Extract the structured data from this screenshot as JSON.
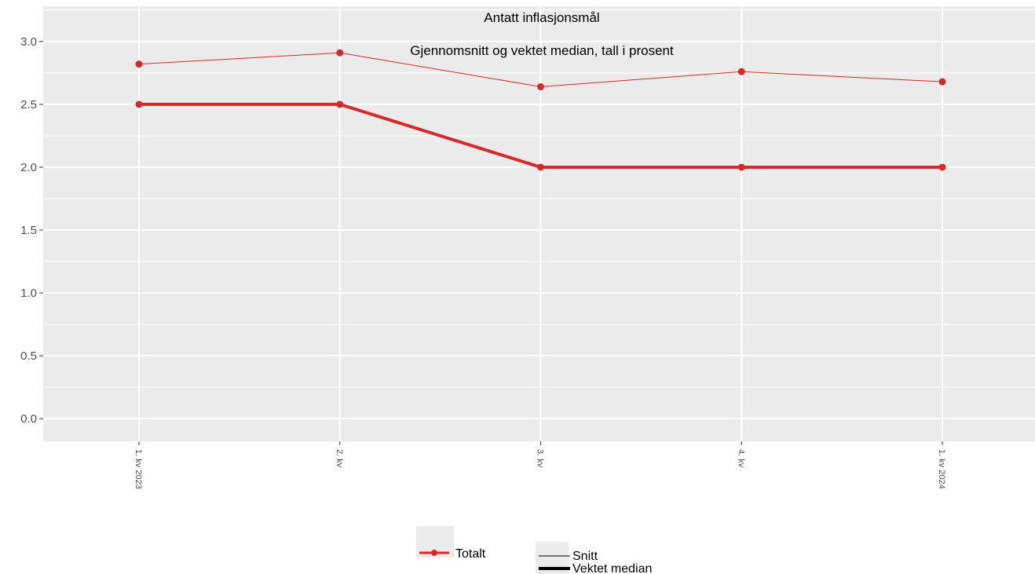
{
  "chart_data": {
    "type": "line",
    "title": "Antatt inflasjonsmål",
    "subtitle": "Gjennomsnitt og vektet median, tall i prosent",
    "categories": [
      "1. kv 2023",
      "2. kv",
      "3. kv",
      "4. kv",
      "1. kv 2024"
    ],
    "series": [
      {
        "name": "Snitt",
        "group": "Totalt",
        "values": [
          2.82,
          2.91,
          2.64,
          2.76,
          2.68
        ]
      },
      {
        "name": "Vektet median",
        "group": "Totalt",
        "values": [
          2.5,
          2.5,
          2.0,
          2.0,
          2.0
        ]
      }
    ],
    "yticks": [
      "0.0",
      "0.5",
      "1.0",
      "1.5",
      "2.0",
      "2.5",
      "3.0"
    ],
    "ylim": [
      -0.18,
      3.28
    ],
    "grid": true,
    "legend": {
      "position": "bottom",
      "color_key": "Totalt",
      "linetype_keys": [
        "Snitt",
        "Vektet median"
      ]
    },
    "colors": {
      "series": "#d62a2a",
      "panel": "#ebebeb",
      "grid": "#ffffff"
    }
  }
}
